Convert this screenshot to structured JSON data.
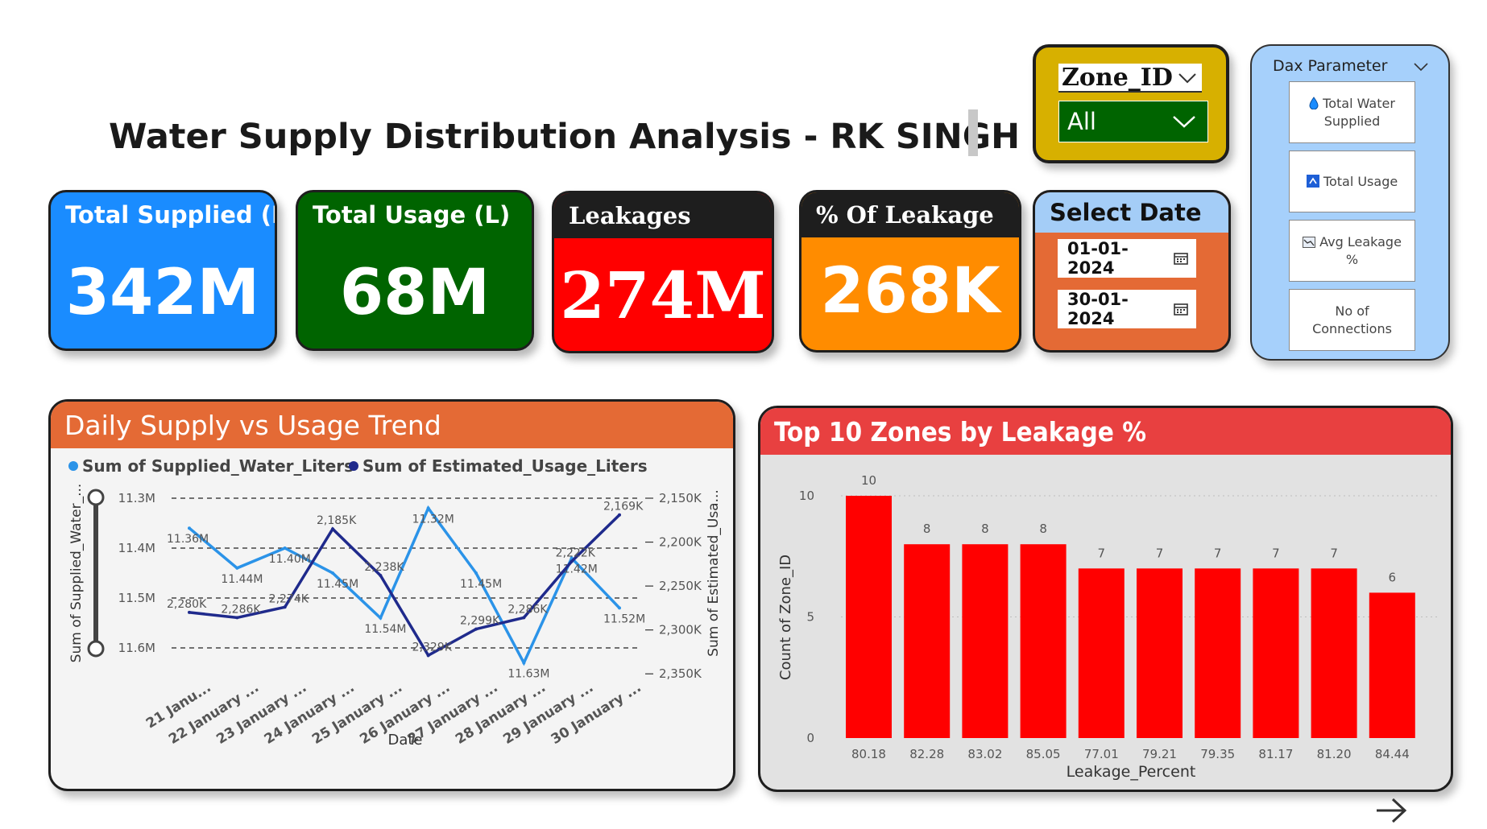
{
  "title": "Water Supply Distribution Analysis - RK SINGH",
  "kpis": {
    "total_supplied": {
      "label": "Total Supplied (L)",
      "value": "342M",
      "color": "#1a8cff"
    },
    "total_usage": {
      "label": "Total Usage (L)",
      "value": "68M",
      "color": "#006400"
    },
    "leakages": {
      "label": "Leakages",
      "value": "274M",
      "color": "#ff0000"
    },
    "pct_leakage": {
      "label": "% Of Leakage",
      "value": "268K",
      "color": "#ff8c00"
    }
  },
  "zone_filter": {
    "label": "Zone_ID",
    "selected": "All"
  },
  "date_filter": {
    "label": "Select Date",
    "start": "01-01-2024",
    "end": "30-01-2024"
  },
  "dax_parameter": {
    "title": "Dax Parameter",
    "items": [
      {
        "label": "Total Water Supplied",
        "icon": "water-drop-icon"
      },
      {
        "label": "Total Usage",
        "icon": "usage-icon"
      },
      {
        "label": "Avg Leakage %",
        "icon": "line-chart-icon"
      },
      {
        "label": "No of Connections",
        "icon": ""
      }
    ]
  },
  "trend_panel": {
    "title": "Daily Supply vs Usage Trend",
    "color": "#e46a35"
  },
  "bar_panel": {
    "title": "Top 10 Zones by Leakage %",
    "color": "#e84040"
  },
  "chart_data": [
    {
      "type": "line",
      "title": "Daily Supply vs Usage Trend",
      "xlabel": "Date",
      "ylabel": "Sum of Supplied_Water_...",
      "y2label": "Sum of Estimated_Usa...",
      "legend_position": "top-left",
      "categories": [
        "21 Janu...",
        "22 January ...",
        "23 January ...",
        "24 January ...",
        "25 January ...",
        "26 January ...",
        "27 January ...",
        "28 January ...",
        "29 January ...",
        "30 January ..."
      ],
      "y_ticks": [
        "11.3M",
        "11.4M",
        "11.5M",
        "11.6M"
      ],
      "y2_ticks": [
        "2,150K",
        "2,200K",
        "2,250K",
        "2,300K",
        "2,350K"
      ],
      "series": [
        {
          "name": "Sum of Supplied_Water_Liters",
          "axis": "left",
          "color": "#2b93e8",
          "values": [
            11.36,
            11.44,
            11.4,
            11.45,
            11.54,
            11.32,
            11.45,
            11.63,
            11.42,
            11.52
          ],
          "labels": [
            "11.36M",
            "11.44M",
            "11.40M",
            "11.45M",
            "11.54M",
            "11.32M",
            "11.45M",
            "11.63M",
            "11.42M",
            "11.52M"
          ]
        },
        {
          "name": "Sum of Estimated_Usage_Liters",
          "axis": "right",
          "color": "#1f2a8c",
          "values": [
            2280,
            2286,
            2274,
            2185,
            2238,
            2329,
            2299,
            2286,
            2222,
            2169
          ],
          "labels": [
            "2,280K",
            "2,286K",
            "2,274K",
            "2,185K",
            "2,238K",
            "2,329K",
            "2,299K",
            "2,286K",
            "2,222K",
            "2,169K"
          ]
        }
      ]
    },
    {
      "type": "bar",
      "title": "Top 10 Zones by Leakage %",
      "xlabel": "Leakage_Percent",
      "ylabel": "Count of Zone_ID",
      "ylim": [
        0,
        10
      ],
      "y_ticks": [
        "0",
        "5",
        "10"
      ],
      "categories": [
        "80.18",
        "82.28",
        "83.02",
        "85.05",
        "77.01",
        "79.21",
        "79.35",
        "81.17",
        "81.20",
        "84.44"
      ],
      "values": [
        10,
        8,
        8,
        8,
        7,
        7,
        7,
        7,
        7,
        6
      ],
      "color": "#ff0000"
    }
  ]
}
